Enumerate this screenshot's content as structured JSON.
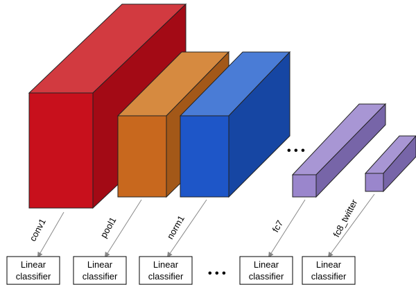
{
  "layers": [
    {
      "label": "conv1",
      "front": "#c8101c",
      "top": "#d23a40",
      "side": "#a30a15"
    },
    {
      "label": "pool1",
      "front": "#c8681e",
      "top": "#d68a40",
      "side": "#a35818"
    },
    {
      "label": "norm1",
      "front": "#1e56c8",
      "top": "#4a7cd6",
      "side": "#1646a3"
    },
    {
      "label": "fc7",
      "front": "#9a86cc",
      "top": "#a896d4",
      "side": "#7765a8"
    },
    {
      "label": "fc8_twitter",
      "front": "#9a86cc",
      "top": "#a896d4",
      "side": "#7765a8"
    }
  ],
  "ellipsis_top": "• • •",
  "ellipsis_bottom": "• • •",
  "classifiers": [
    {
      "line1": "Linear",
      "line2": "classifier"
    },
    {
      "line1": "Linear",
      "line2": "classifier"
    },
    {
      "line1": "Linear",
      "line2": "classifier"
    },
    {
      "line1": "Linear",
      "line2": "classifier"
    },
    {
      "line1": "Linear",
      "line2": "classifier"
    }
  ]
}
